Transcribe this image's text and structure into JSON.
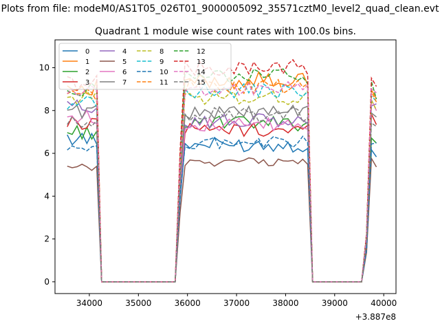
{
  "chart_data": {
    "type": "line",
    "suptitle": "Plots from file: modeM0/AS1T05_026T01_9000005092_35571cztM0_level2_quad_clean.evt",
    "title": "Quadrant 1 module wise count rates with 100.0s bins.",
    "xlabel": "",
    "ylabel": "",
    "x_offset_label": "+3.887e8",
    "xlim": [
      33300,
      40250
    ],
    "ylim": [
      -0.55,
      11.3
    ],
    "xticks": [
      34000,
      35000,
      36000,
      37000,
      38000,
      39000,
      40000
    ],
    "yticks": [
      0,
      2,
      4,
      6,
      8,
      10
    ],
    "legend_loc": "upper left",
    "legend_ncol": 4,
    "grid": false,
    "segments": [
      {
        "start": 33550,
        "n": 7
      },
      {
        "start": 35850,
        "n": 27
      },
      {
        "start": 39650,
        "n": 3
      }
    ],
    "series": [
      {
        "name": "0",
        "color": "#1f77b4",
        "dash": "solid",
        "levels": [
          6.7,
          6.4,
          5.8
        ],
        "amp": 0.35
      },
      {
        "name": "1",
        "color": "#ff7f0e",
        "dash": "solid",
        "levels": [
          9.1,
          9.4,
          8.7
        ],
        "amp": 0.4
      },
      {
        "name": "2",
        "color": "#2ca02c",
        "dash": "solid",
        "levels": [
          7.0,
          7.4,
          6.6
        ],
        "amp": 0.35
      },
      {
        "name": "3",
        "color": "#d62728",
        "dash": "solid",
        "levels": [
          7.4,
          7.1,
          7.3
        ],
        "amp": 0.35
      },
      {
        "name": "4",
        "color": "#9467bd",
        "dash": "solid",
        "levels": [
          8.2,
          7.5,
          8.1
        ],
        "amp": 0.35
      },
      {
        "name": "5",
        "color": "#8c564b",
        "dash": "solid",
        "levels": [
          5.3,
          5.6,
          5.5
        ],
        "amp": 0.2
      },
      {
        "name": "6",
        "color": "#e377c2",
        "dash": "solid",
        "levels": [
          7.7,
          7.3,
          7.9
        ],
        "amp": 0.35
      },
      {
        "name": "7",
        "color": "#7f7f7f",
        "dash": "solid",
        "levels": [
          8.0,
          7.9,
          7.6
        ],
        "amp": 0.35
      },
      {
        "name": "8",
        "color": "#bcbd22",
        "dash": "dashed",
        "levels": [
          8.6,
          8.6,
          8.2
        ],
        "amp": 0.35
      },
      {
        "name": "9",
        "color": "#17becf",
        "dash": "dashed",
        "levels": [
          8.4,
          8.9,
          8.5
        ],
        "amp": 0.35
      },
      {
        "name": "10",
        "color": "#1f77b4",
        "dash": "dashed",
        "levels": [
          6.1,
          6.5,
          6.2
        ],
        "amp": 0.3
      },
      {
        "name": "11",
        "color": "#ff7f0e",
        "dash": "dashed",
        "levels": [
          8.7,
          9.1,
          8.3
        ],
        "amp": 0.35
      },
      {
        "name": "12",
        "color": "#2ca02c",
        "dash": "dashed",
        "levels": [
          9.0,
          9.6,
          8.8
        ],
        "amp": 0.35
      },
      {
        "name": "13",
        "color": "#d62728",
        "dash": "dashed",
        "levels": [
          9.3,
          10.0,
          9.1
        ],
        "amp": 0.4
      },
      {
        "name": "14",
        "color": "#e377c2",
        "dash": "dashed",
        "levels": [
          8.9,
          9.0,
          8.6
        ],
        "amp": 0.35
      },
      {
        "name": "15",
        "color": "#7f7f7f",
        "dash": "dashed",
        "levels": [
          7.4,
          7.8,
          7.3
        ],
        "amp": 0.35
      }
    ]
  }
}
